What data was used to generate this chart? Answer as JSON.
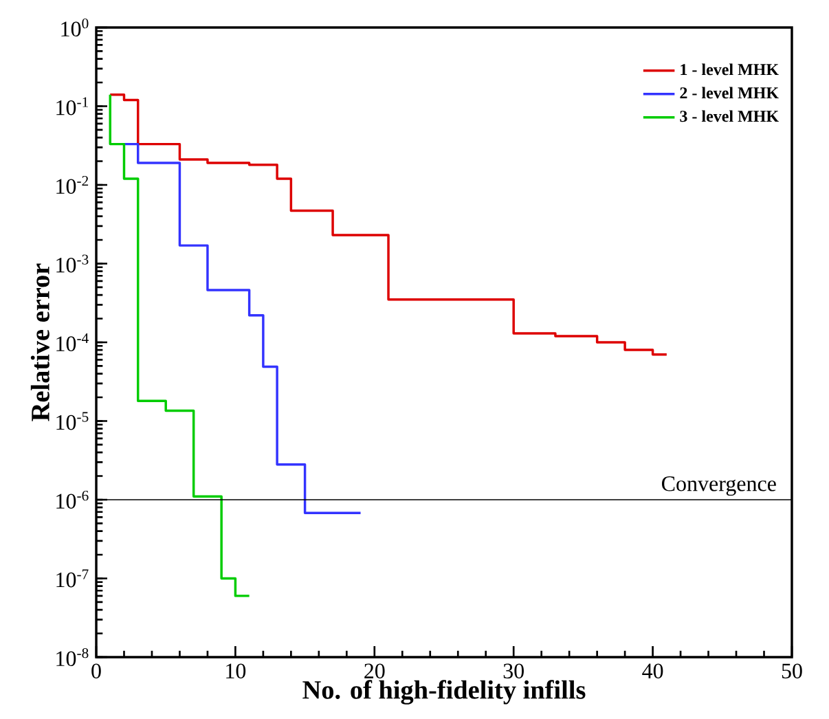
{
  "chart_data": {
    "type": "step",
    "xlabel": "No. of high-fidelity infills",
    "ylabel": "Relative error",
    "log": "y",
    "grid": false,
    "legend": "top right",
    "marker": "none",
    "line_style": "solid",
    "xlim": [
      0,
      50
    ],
    "xticks": [
      0,
      10,
      20,
      30,
      40,
      50
    ],
    "ylim": [
      1e-08,
      1
    ],
    "yticks": [
      {
        "value": 1e-08,
        "label": "10$^{-8}$"
      },
      {
        "value": 1e-07,
        "label": "10$^{-7}$"
      },
      {
        "value": 1e-06,
        "label": "10$^{-6}$"
      },
      {
        "value": 1e-05,
        "label": "10$^{-5}$"
      },
      {
        "value": 0.0001,
        "label": "10$^{-4}$"
      },
      {
        "value": 0.001,
        "label": "10$^{-3}$"
      },
      {
        "value": 0.01,
        "label": "10$^{-2}$"
      },
      {
        "value": 0.1,
        "label": "10$^{-1}$"
      },
      {
        "value": 1,
        "label": "10$^{0}$"
      }
    ],
    "series": [
      {
        "name": "1 - level MHK",
        "color": "#dd0000",
        "x": [
          1,
          2,
          3,
          6,
          8,
          11,
          13,
          14,
          17,
          21,
          30,
          33,
          36,
          38,
          40,
          41
        ],
        "values": [
          0.14,
          0.12,
          0.033,
          0.021,
          0.019,
          0.018,
          0.012,
          0.0047,
          0.0023,
          0.00035,
          0.00013,
          0.00012,
          0.0001,
          8e-05,
          7e-05,
          7e-05
        ]
      },
      {
        "name": "2 - level MHK",
        "color": "#3333ff",
        "x": [
          2,
          3,
          6,
          8,
          11,
          12,
          13,
          15,
          19
        ],
        "values": [
          0.033,
          0.019,
          0.0017,
          0.00046,
          0.00022,
          4.9e-05,
          2.8e-06,
          6.8e-07,
          6.8e-07
        ]
      },
      {
        "name": "3 - level MHK",
        "color": "#00cc00",
        "x": [
          1,
          1,
          2,
          3,
          5,
          7,
          9,
          10,
          11
        ],
        "values": [
          0.14,
          0.033,
          0.012,
          1.8e-05,
          1.35e-05,
          1.1e-06,
          1e-07,
          6e-08,
          6e-08
        ]
      }
    ],
    "ref_lines": [
      {
        "axis": "y",
        "value": 1e-06,
        "label": "Convergence",
        "color": "#000000",
        "line_style": "solid"
      }
    ]
  }
}
